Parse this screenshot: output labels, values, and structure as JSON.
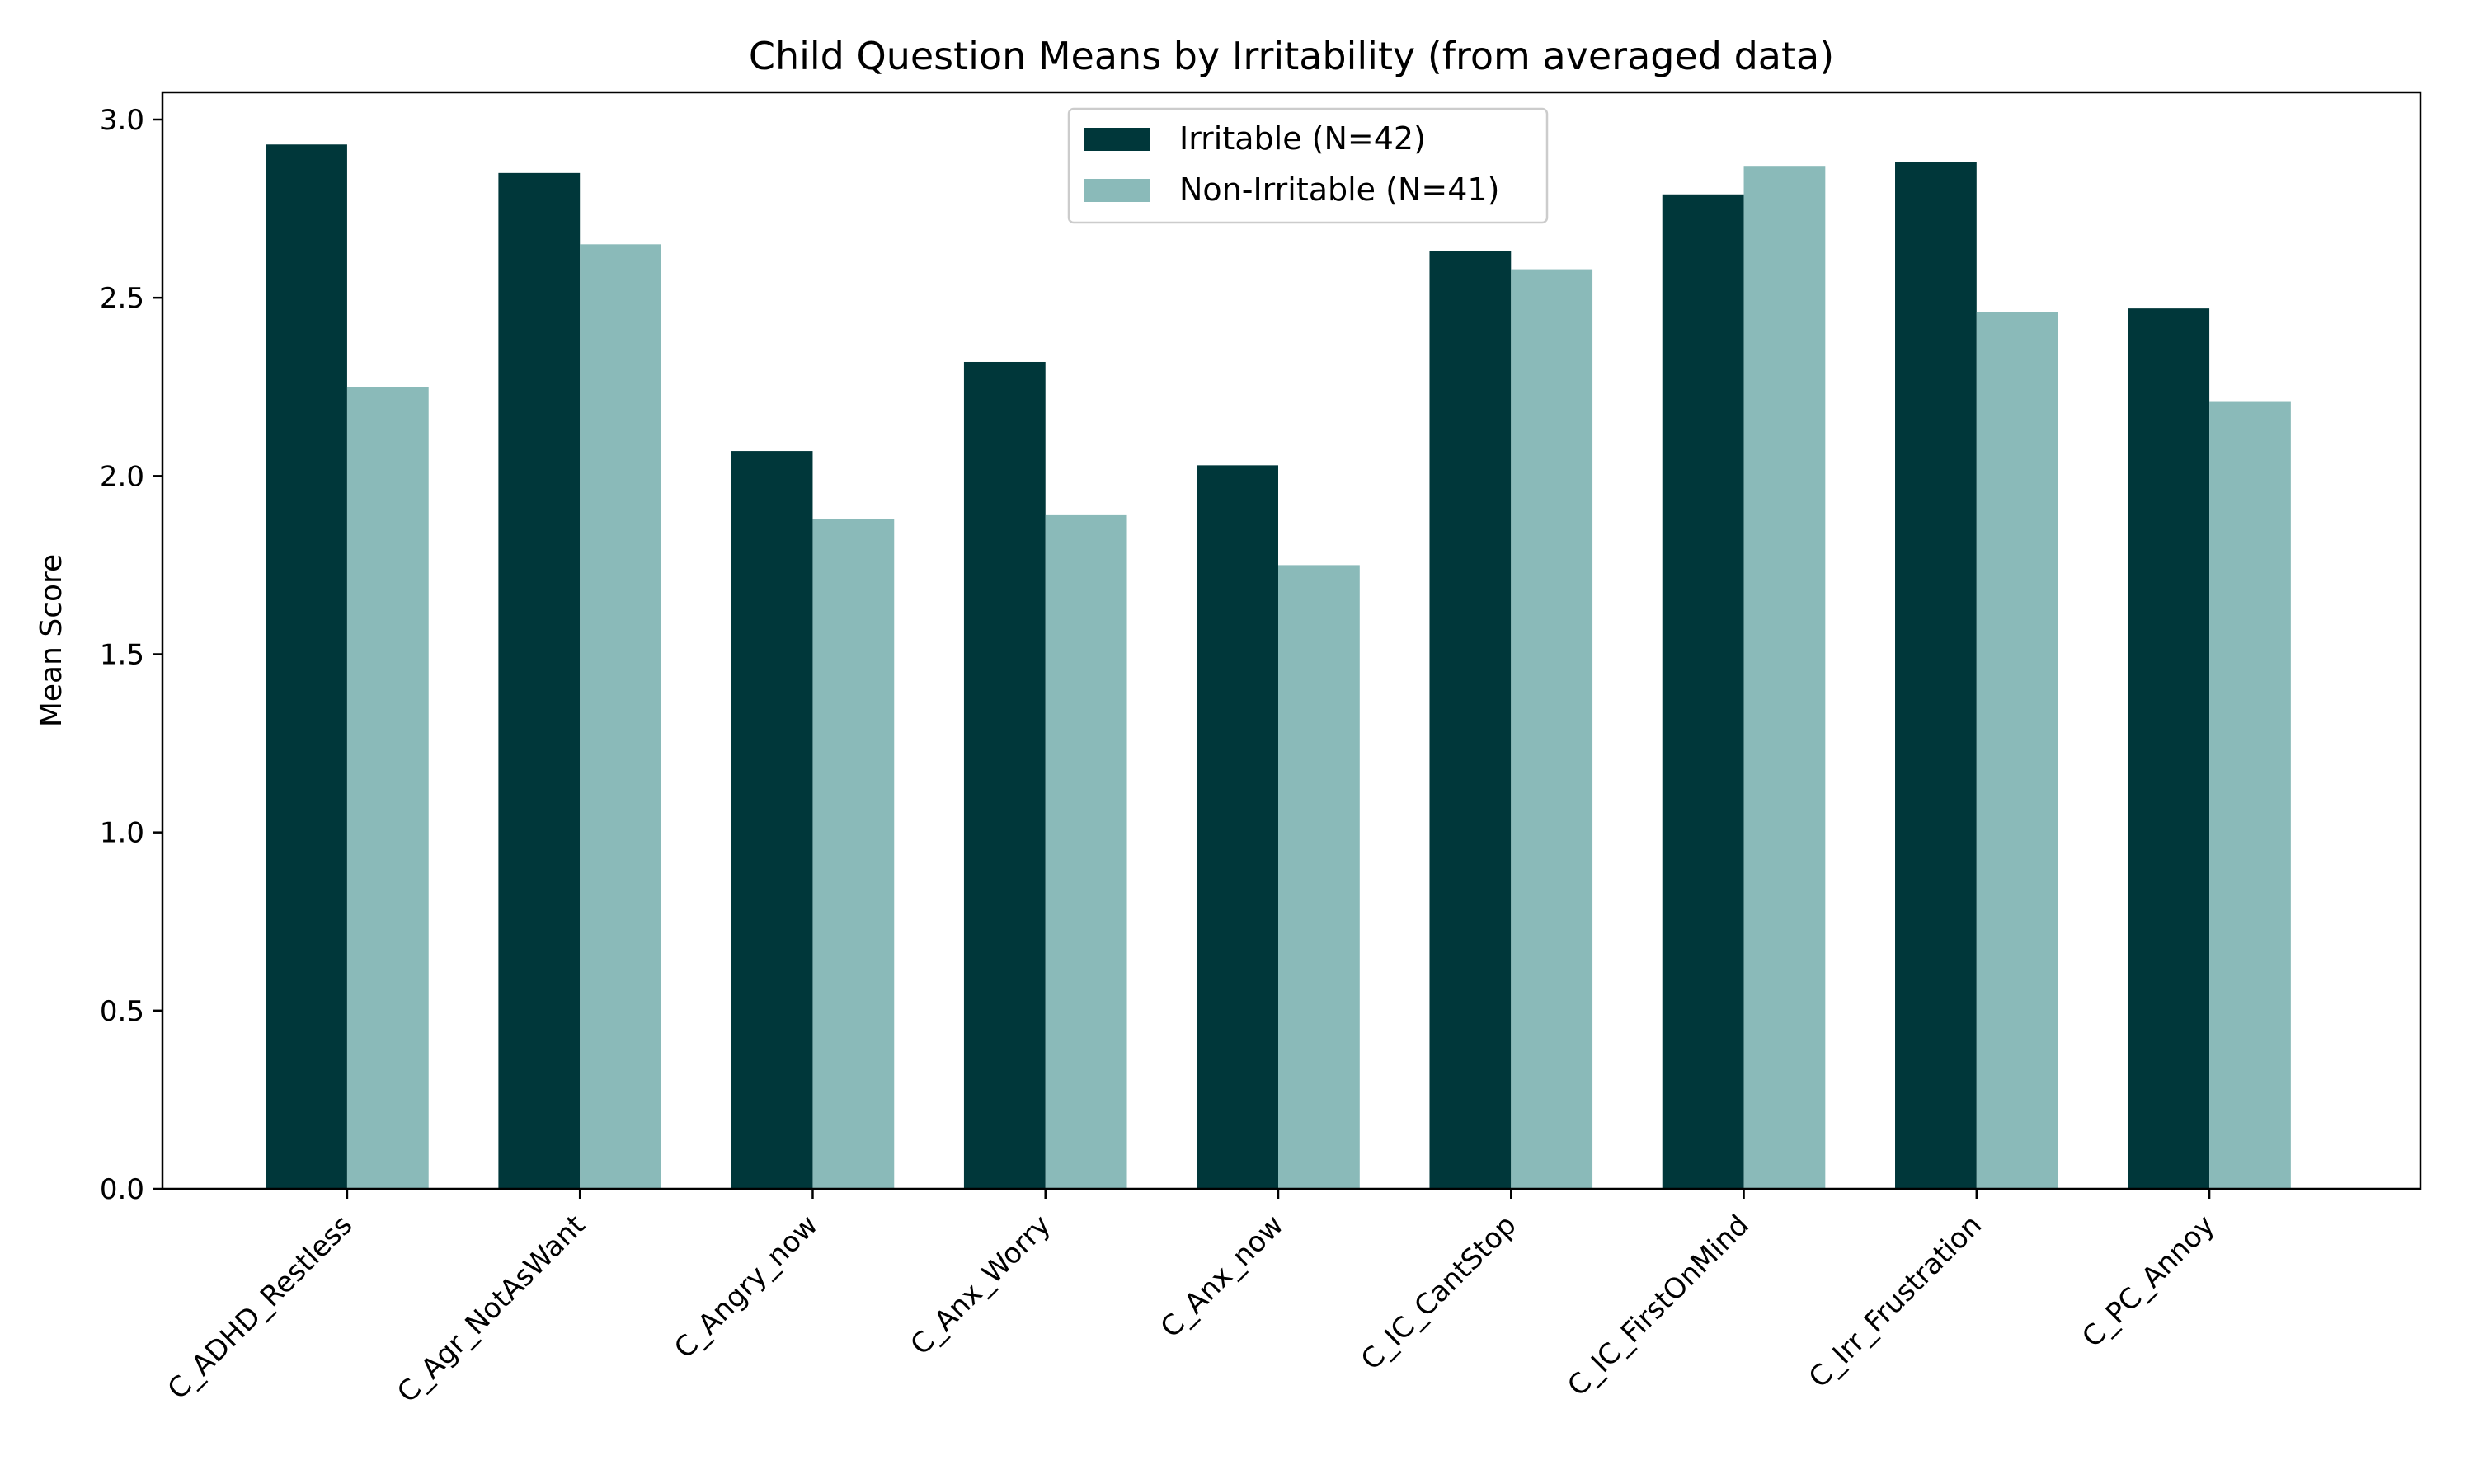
{
  "chart_data": {
    "type": "bar",
    "title": "Child Question Means by Irritability (from averaged data)",
    "xlabel": "",
    "ylabel": "Mean Score",
    "ylim": [
      0,
      3.0
    ],
    "yticks": [
      "0.0",
      "0.5",
      "1.0",
      "1.5",
      "2.0",
      "2.5",
      "3.0"
    ],
    "categories": [
      "C_ADHD_Restless",
      "C_Agr_NotAsWant",
      "C_Angry_now",
      "C_Anx_Worry",
      "C_Anx_now",
      "C_IC_CantStop",
      "C_IC_FirstOnMind",
      "C_Irr_Frustration",
      "C_PC_Annoy"
    ],
    "series": [
      {
        "name": "Irritable (N=42)",
        "color": "#00373a",
        "values": [
          2.93,
          2.85,
          2.07,
          2.32,
          2.03,
          2.63,
          2.79,
          2.88,
          2.47
        ]
      },
      {
        "name": "Non-Irritable (N=41)",
        "color": "#8abab9",
        "values": [
          2.25,
          2.65,
          1.88,
          1.89,
          1.75,
          2.58,
          2.87,
          2.46,
          2.21
        ]
      }
    ],
    "legend": "top-center",
    "grid": false
  }
}
